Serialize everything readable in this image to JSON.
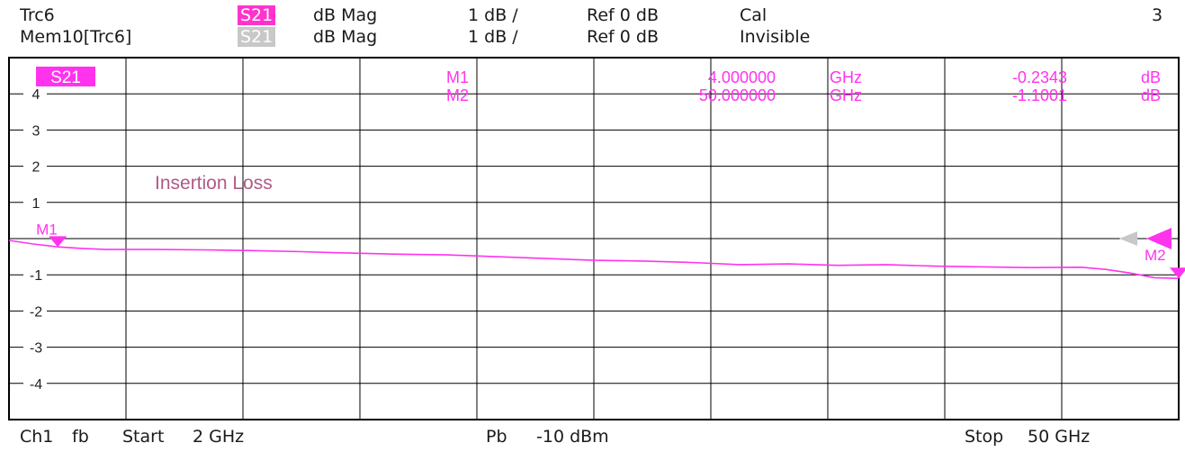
{
  "header": {
    "row1": {
      "trace": "Trc6",
      "param": "S21",
      "format": "dB Mag",
      "scale": "1 dB /",
      "ref": "Ref 0 dB",
      "status": "Cal",
      "channel_number": "3"
    },
    "row2": {
      "trace": "Mem10[Trc6]",
      "param": "S21",
      "format": "dB Mag",
      "scale": "1 dB /",
      "ref": "Ref 0 dB",
      "status": "Invisible"
    }
  },
  "footer": {
    "channel": "Ch1",
    "mode": "fb",
    "start_label": "Start",
    "start_value": "2 GHz",
    "power_label": "Pb",
    "power_value": "-10 dBm",
    "stop_label": "Stop",
    "stop_value": "50 GHz"
  },
  "colors": {
    "trace": "#ff33ee",
    "memory_trace": "#c8c8c8",
    "annotation": "#b05a85",
    "grid": "#000000"
  },
  "chart_data": {
    "type": "line",
    "title": "Insertion Loss",
    "trace_label": "S21",
    "xlabel": "",
    "ylabel": "",
    "xlim": [
      2,
      50
    ],
    "ylim": [
      -5,
      5
    ],
    "x_divisions": 10,
    "y_ticks": [
      4,
      3,
      2,
      1,
      -1,
      -2,
      -3,
      -4
    ],
    "y_tick_labels": [
      "4",
      "3",
      "2",
      "1",
      "-1",
      "-2",
      "-3",
      "-4"
    ],
    "grid": true,
    "ref_level": 0,
    "series": [
      {
        "name": "S21",
        "x": [
          2,
          3,
          4,
          5,
          6,
          8,
          10,
          12,
          14,
          16,
          18,
          20,
          22,
          24,
          26,
          28,
          30,
          32,
          34,
          36,
          38,
          40,
          42,
          44,
          46,
          47,
          48,
          49,
          50
        ],
        "y": [
          -0.05,
          -0.15,
          -0.23,
          -0.27,
          -0.3,
          -0.3,
          -0.31,
          -0.33,
          -0.36,
          -0.4,
          -0.43,
          -0.45,
          -0.5,
          -0.55,
          -0.6,
          -0.62,
          -0.66,
          -0.72,
          -0.7,
          -0.74,
          -0.72,
          -0.76,
          -0.78,
          -0.8,
          -0.79,
          -0.85,
          -0.95,
          -1.08,
          -1.1
        ]
      }
    ],
    "markers": [
      {
        "label": "M1",
        "x": 4,
        "y": -0.2343,
        "freq_text": "4.000000",
        "freq_unit": "GHz",
        "value_text": "-0.2343",
        "value_unit": "dB"
      },
      {
        "label": "M2",
        "x": 50,
        "y": -1.1001,
        "freq_text": "50.000000",
        "freq_unit": "GHz",
        "value_text": "-1.1001",
        "value_unit": "dB"
      }
    ]
  }
}
